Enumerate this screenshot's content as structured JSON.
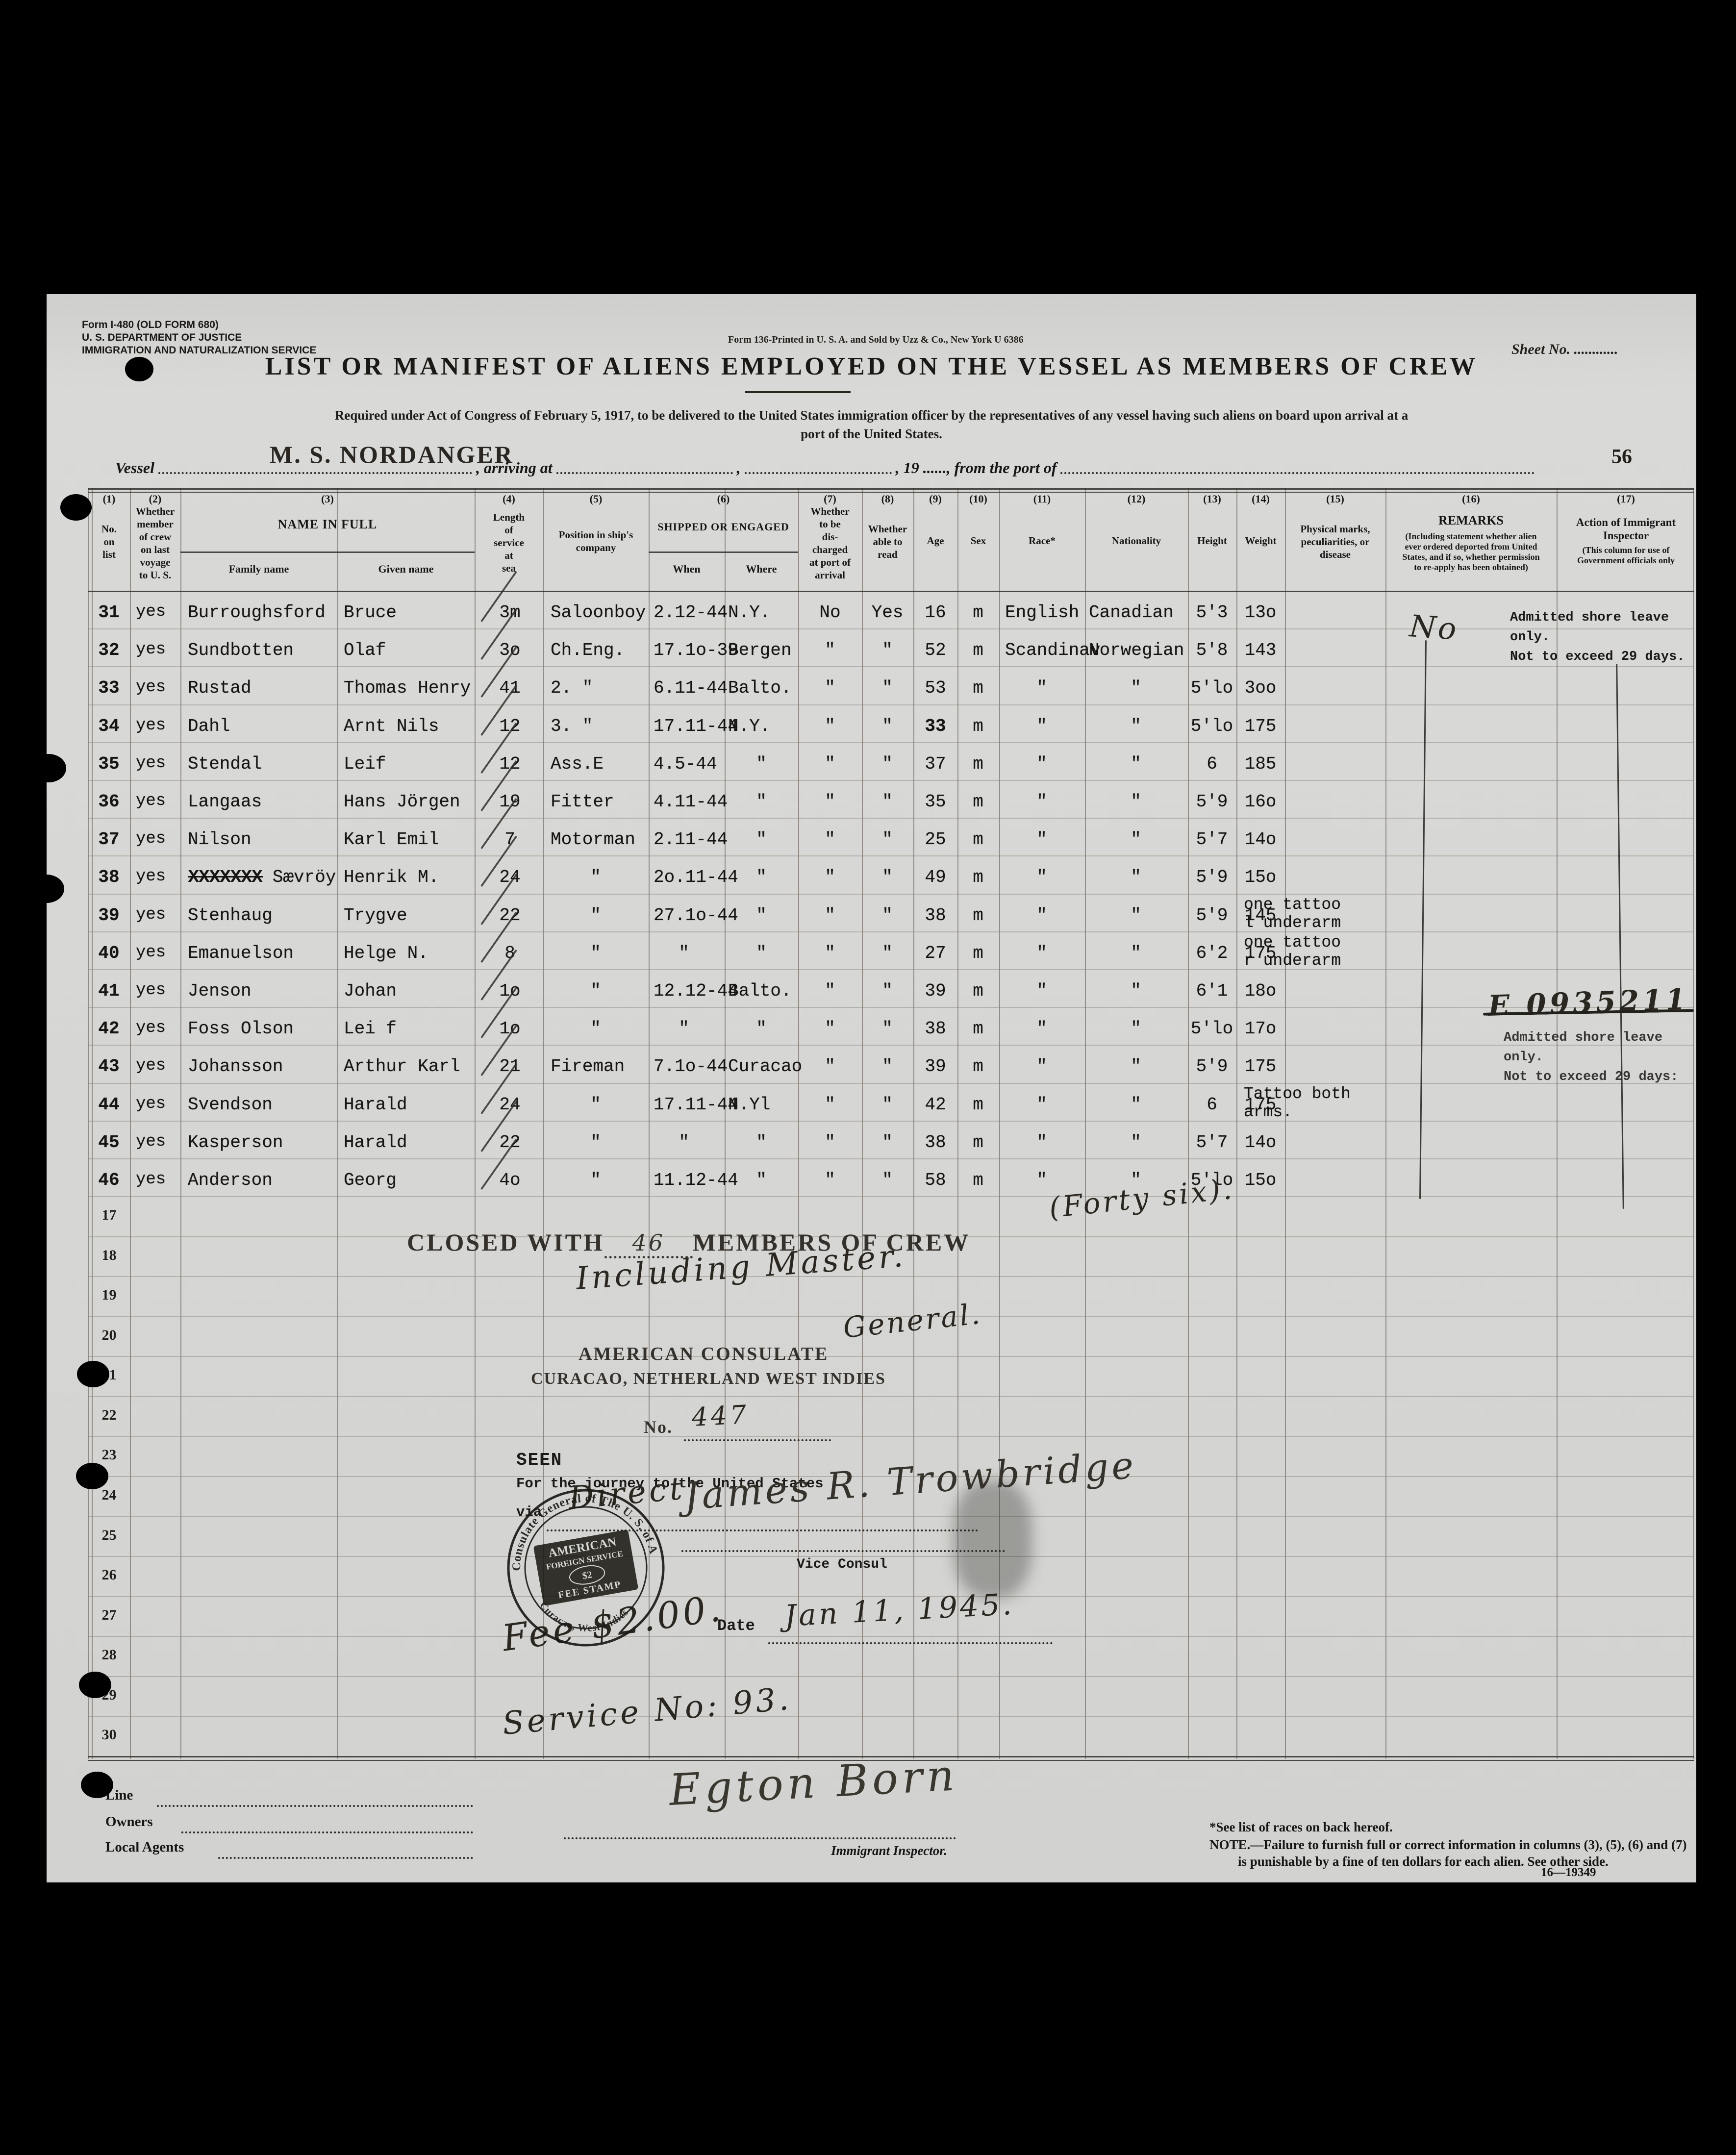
{
  "page": {
    "sheet_label": "Sheet No. ............",
    "page_number": "56"
  },
  "form_header": {
    "form_id_lines": [
      "Form I-480 (OLD FORM 680)",
      "U. S. DEPARTMENT OF JUSTICE",
      "IMMIGRATION AND NATURALIZATION SERVICE"
    ],
    "print_note": "Form 136-Printed in U. S. A. and Sold by Uzz & Co., New York   U 6386",
    "title": "LIST OR MANIFEST OF ALIENS EMPLOYED ON THE VESSEL AS MEMBERS OF CREW",
    "subtitle_line1": "Required under Act of Congress of February 5, 1917, to be delivered to the United States immigration officer by the representatives of any vessel having such aliens on board upon arrival at a",
    "subtitle_line2": "port of the United States.",
    "vessel_name": "M. S. NORDANGER",
    "vessel_label": "Vessel",
    "arriving_label": ", arriving at",
    "comma": ",",
    "year_port_label": ", 19 ......, from the port of"
  },
  "table": {
    "columns": [
      {
        "num": "(1)",
        "label": "No.\non\nlist"
      },
      {
        "num": "(2)",
        "label": "Whether\nmember\nof crew\non last\nvoyage\nto U. S."
      },
      {
        "num": "(3)",
        "label": "NAME IN FULL",
        "subs": [
          "Family name",
          "Given name"
        ]
      },
      {
        "num": "(4)",
        "label": "Length\nof\nservice\nat\nsea"
      },
      {
        "num": "(5)",
        "label": "Position in ship's\ncompany"
      },
      {
        "num": "(6)",
        "label": "SHIPPED OR ENGAGED",
        "subs": [
          "When",
          "Where"
        ]
      },
      {
        "num": "(7)",
        "label": "Whether\nto be\ndis-\ncharged\nat port of\narrival"
      },
      {
        "num": "(8)",
        "label": "Whether\nable to\nread"
      },
      {
        "num": "(9)",
        "label": "Age"
      },
      {
        "num": "(10)",
        "label": "Sex"
      },
      {
        "num": "(11)",
        "label": "Race*"
      },
      {
        "num": "(12)",
        "label": "Nationality"
      },
      {
        "num": "(13)",
        "label": "Height"
      },
      {
        "num": "(14)",
        "label": "Weight"
      },
      {
        "num": "(15)",
        "label": "Physical marks,\npeculiarities, or\ndisease"
      },
      {
        "num": "(16)",
        "label": "REMARKS",
        "note": "(Including statement whether alien\never ordered deported from United\nStates, and if so, whether permission\nto re-apply has been obtained)"
      },
      {
        "num": "(17)",
        "label": "Action of Immigrant\nInspector",
        "note": "(This column for use of\nGovernment officials only"
      }
    ],
    "rows": [
      {
        "no": "31",
        "member": "yes",
        "family": "Burroughsford",
        "given": "Bruce",
        "service": "3m",
        "position": "Saloonboy",
        "when": "2.12-44",
        "where": "N.Y.",
        "discharged": "No",
        "read": "Yes",
        "age": "16",
        "sex": "m",
        "race": "English",
        "nationality": "Canadian",
        "height": "5'3",
        "weight": "13o",
        "marks": ""
      },
      {
        "no": "32",
        "member": "yes",
        "family": "Sundbotten",
        "given": "Olaf",
        "service": "3o",
        "position": "Ch.Eng.",
        "when": "17.1o-39",
        "where": "Bergen",
        "discharged": "\"",
        "read": "\"",
        "age": "52",
        "sex": "m",
        "race": "Scandinav",
        "nationality": "Norwegian",
        "height": "5'8",
        "weight": "143",
        "marks": ""
      },
      {
        "no": "33",
        "member": "yes",
        "family": "Rustad",
        "given": "Thomas Henry",
        "service": "41",
        "position": "2. \"",
        "when": "6.11-44",
        "where": "Balto.",
        "discharged": "\"",
        "read": "\"",
        "age": "53",
        "sex": "m",
        "race": "\"",
        "nationality": "\"",
        "height": "5'lo",
        "weight": "3oo",
        "marks": ""
      },
      {
        "no": "34",
        "member": "yes",
        "family": "Dahl",
        "given": "Arnt Nils",
        "service": "12",
        "position": "3. \"",
        "when": "17.11-44",
        "where": "N.Y.",
        "discharged": "\"",
        "read": "\"",
        "age": "33",
        "sex": "m",
        "race": "\"",
        "nationality": "\"",
        "height": "5'lo",
        "weight": "175",
        "marks": ""
      },
      {
        "no": "35",
        "member": "yes",
        "family": "Stendal",
        "given": "Leif",
        "service": "12",
        "position": "Ass.E",
        "when": "4.5-44",
        "where": "\"",
        "discharged": "\"",
        "read": "\"",
        "age": "37",
        "sex": "m",
        "race": "\"",
        "nationality": "\"",
        "height": "6",
        "weight": "185",
        "marks": ""
      },
      {
        "no": "36",
        "member": "yes",
        "family": "Langaas",
        "given": "Hans Jörgen",
        "service": "19",
        "position": "Fitter",
        "when": "4.11-44",
        "where": "\"",
        "discharged": "\"",
        "read": "\"",
        "age": "35",
        "sex": "m",
        "race": "\"",
        "nationality": "\"",
        "height": "5'9",
        "weight": "16o",
        "marks": ""
      },
      {
        "no": "37",
        "member": "yes",
        "family": "Nilson",
        "given": "Karl Emil",
        "service": "7",
        "position": "Motorman",
        "when": "2.11-44",
        "where": "\"",
        "discharged": "\"",
        "read": "\"",
        "age": "25",
        "sex": "m",
        "race": "\"",
        "nationality": "\"",
        "height": "5'7",
        "weight": "14o",
        "marks": ""
      },
      {
        "no": "38",
        "member": "yes",
        "family_struck": "XXXXXXX",
        "family": " Sævröy",
        "given": "Henrik M.",
        "service": "24",
        "position": "\"",
        "when": "2o.11-44",
        "where": "\"",
        "discharged": "\"",
        "read": "\"",
        "age": "49",
        "sex": "m",
        "race": "\"",
        "nationality": "\"",
        "height": "5'9",
        "weight": "15o",
        "marks": ""
      },
      {
        "no": "39",
        "member": "yes",
        "family": "Stenhaug",
        "given": "Trygve",
        "service": "22",
        "position": "\"",
        "when": "27.1o-44",
        "where": "\"",
        "discharged": "\"",
        "read": "\"",
        "age": "38",
        "sex": "m",
        "race": "\"",
        "nationality": "\"",
        "height": "5'9",
        "weight": "145",
        "marks": "one tattoo\nl underarm"
      },
      {
        "no": "40",
        "member": "yes",
        "family": "Emanuelson",
        "given": "Helge N.",
        "service": "8",
        "position": "\"",
        "when": "\"",
        "where": "\"",
        "discharged": "\"",
        "read": "\"",
        "age": "27",
        "sex": "m",
        "race": "\"",
        "nationality": "\"",
        "height": "6'2",
        "weight": "175",
        "marks": "one tattoo\nr underarm"
      },
      {
        "no": "41",
        "member": "yes",
        "family": "Jenson",
        "given": "Johan",
        "service": "1o",
        "position": "\"",
        "when": "12.12-44",
        "where": "Balto.",
        "discharged": "\"",
        "read": "\"",
        "age": "39",
        "sex": "m",
        "race": "\"",
        "nationality": "\"",
        "height": "6'1",
        "weight": "18o",
        "marks": ""
      },
      {
        "no": "42",
        "member": "yes",
        "family": "Foss Olson",
        "given": "Lei f",
        "service": "1o",
        "position": "\"",
        "when": "\"",
        "where": "\"",
        "discharged": "\"",
        "read": "\"",
        "age": "38",
        "sex": "m",
        "race": "\"",
        "nationality": "\"",
        "height": "5'lo",
        "weight": "17o",
        "marks": ""
      },
      {
        "no": "43",
        "member": "yes",
        "family": "Johansson",
        "given": "Arthur Karl",
        "service": "21",
        "position": "Fireman",
        "when": "7.1o-44",
        "where": "Curacao",
        "discharged": "\"",
        "read": "\"",
        "age": "39",
        "sex": "m",
        "race": "\"",
        "nationality": "\"",
        "height": "5'9",
        "weight": "175",
        "marks": ""
      },
      {
        "no": "44",
        "member": "yes",
        "family": "Svendson",
        "given": "Harald",
        "service": "24",
        "position": "\"",
        "when": "17.11-44",
        "where": "N.Yl",
        "discharged": "\"",
        "read": "\"",
        "age": "42",
        "sex": "m",
        "race": "\"",
        "nationality": "\"",
        "height": "6",
        "weight": "175",
        "marks": "Tattoo both\narms."
      },
      {
        "no": "45",
        "member": "yes",
        "family": "Kasperson",
        "given": "Harald",
        "service": "22",
        "position": "\"",
        "when": "\"",
        "where": "\"",
        "discharged": "\"",
        "read": "\"",
        "age": "38",
        "sex": "m",
        "race": "\"",
        "nationality": "\"",
        "height": "5'7",
        "weight": "14o",
        "marks": ""
      },
      {
        "no": "46",
        "member": "yes",
        "family": "Anderson",
        "given": "Georg",
        "service": "4o",
        "position": "\"",
        "when": "11.12-44",
        "where": "\"",
        "discharged": "\"",
        "read": "\"",
        "age": "58",
        "sex": "m",
        "race": "\"",
        "nationality": "\"",
        "height": "5'lo",
        "weight": "15o",
        "marks": ""
      }
    ],
    "empty_row_numbers": [
      "17",
      "18",
      "19",
      "20",
      "21",
      "22",
      "23",
      "24",
      "25",
      "26",
      "27",
      "28",
      "29",
      "30"
    ]
  },
  "annotations": {
    "admitted_shore_leave_1": "Admitted shore leave only.\nNot to exceed 29 days.",
    "admitted_shore_leave_2": "Admitted shore leave only.\nNot to exceed 29 days:",
    "handwritten_no": "No",
    "crossed_number": "E 0935211",
    "closed_with_prefix": "CLOSED WITH",
    "closed_with_count": "46",
    "closed_with_suffix": "MEMBERS OF CREW",
    "forty_six": "(Forty six).",
    "including_master": "Including Master.",
    "american_consulate": "AMERICAN CONSULATE",
    "general": "General.",
    "curacao_line": "CURACAO, NETHERLAND WEST INDIES",
    "no_label": "No.",
    "consulate_number": "447",
    "seen": "SEEN",
    "journey_line": "For the journey to the United States",
    "via_label": "via",
    "via_value": "Direct",
    "fee_stamp": {
      "ring_top": "Consulate General of The U. S. of America",
      "ring_bottom": "Curacao, West Indies",
      "inner_line1": "AMERICAN",
      "inner_line2": "FOREIGN SERVICE",
      "denomination": "$2",
      "inner_line3": "FEE STAMP"
    },
    "vice_consul_signature": "James R. Trowbridge",
    "vice_consul_label": "Vice Consul",
    "date_label": "Date",
    "date_value": "Jan 11, 1945.",
    "fee_note": "Fee $2.00.",
    "service_note": "Service No: 93."
  },
  "footer": {
    "line_label": "Line",
    "owners_label": "Owners",
    "agents_label": "Local Agents",
    "inspector_signature": "Egton Born",
    "inspector_label": "Immigrant Inspector.",
    "footnote1": "*See list of races on back hereof.",
    "footnote2a": "NOTE.—Failure to furnish full or correct information in columns (3), (5), (6) and (7)",
    "footnote2b": "is punishable by a fine of ten dollars for each alien.   See other side.",
    "form_print_number": "16—19349"
  }
}
